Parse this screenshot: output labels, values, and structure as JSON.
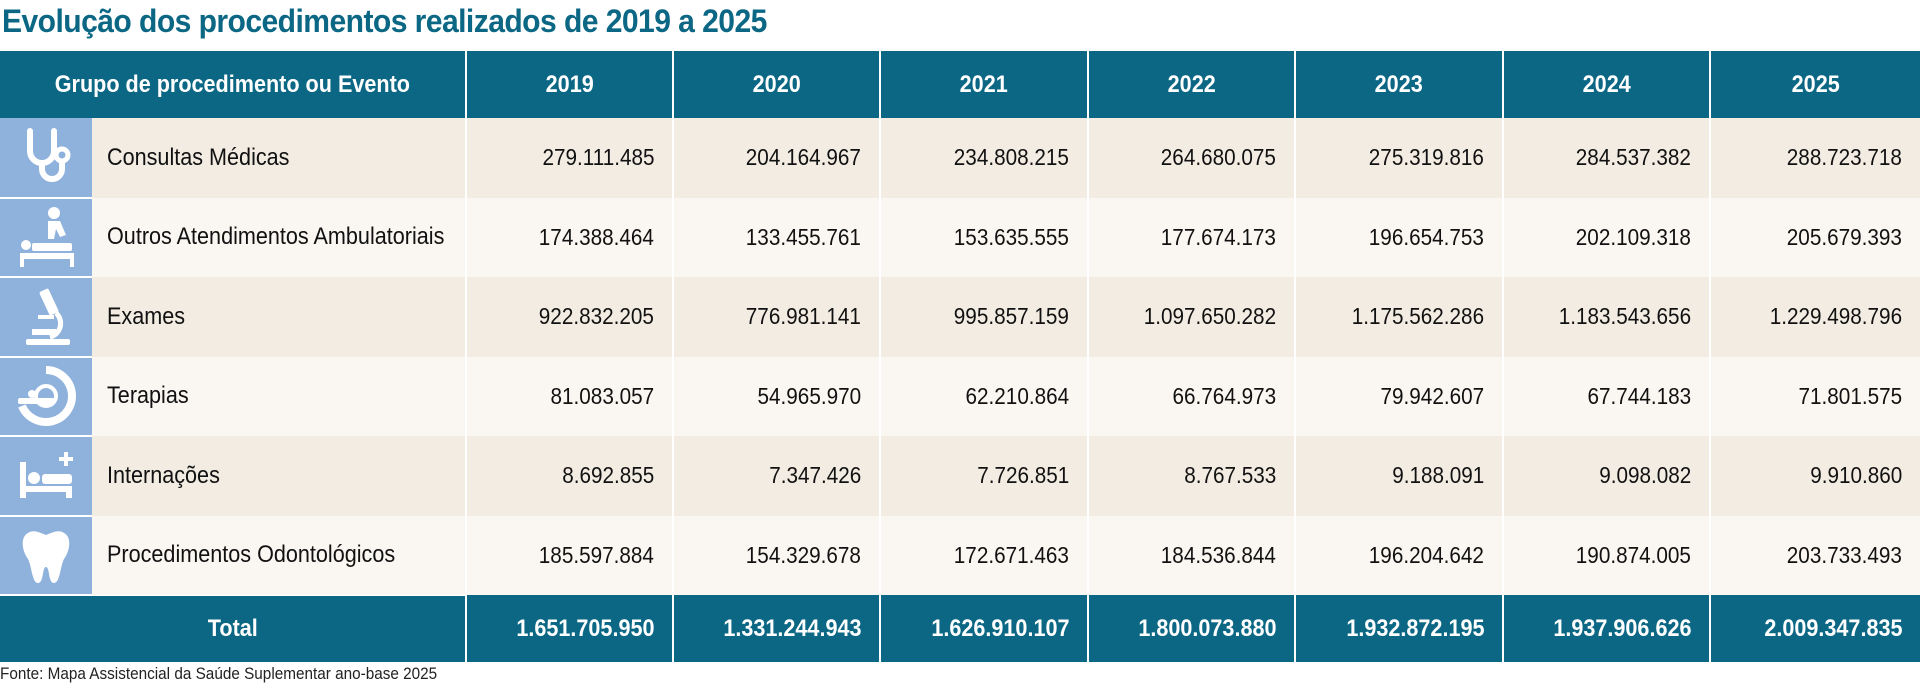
{
  "title": "Evolução dos procedimentos realizados de 2019 a 2025",
  "header": {
    "group_label": "Grupo de procedimento ou Evento",
    "years": [
      "2019",
      "2020",
      "2021",
      "2022",
      "2023",
      "2024",
      "2025"
    ]
  },
  "rows": [
    {
      "icon": "stethoscope-icon",
      "label": "Consultas Médicas",
      "values": [
        "279.111.485",
        "204.164.967",
        "234.808.215",
        "264.680.075",
        "275.319.816",
        "284.537.382",
        "288.723.718"
      ]
    },
    {
      "icon": "massage-therapy-icon",
      "label": "Outros Atendimentos Ambulatoriais",
      "values": [
        "174.388.464",
        "133.455.761",
        "153.635.555",
        "177.674.173",
        "196.654.753",
        "202.109.318",
        "205.679.393"
      ]
    },
    {
      "icon": "microscope-icon",
      "label": "Exames",
      "values": [
        "922.832.205",
        "776.981.141",
        "995.857.159",
        "1.097.650.282",
        "1.175.562.286",
        "1.183.543.656",
        "1.229.498.796"
      ]
    },
    {
      "icon": "scanner-icon",
      "label": "Terapias",
      "values": [
        "81.083.057",
        "54.965.970",
        "62.210.864",
        "66.764.973",
        "79.942.607",
        "67.744.183",
        "71.801.575"
      ]
    },
    {
      "icon": "hospital-bed-icon",
      "label": "Internações",
      "values": [
        "8.692.855",
        "7.347.426",
        "7.726.851",
        "8.767.533",
        "9.188.091",
        "9.098.082",
        "9.910.860"
      ]
    },
    {
      "icon": "tooth-icon",
      "label": "Procedimentos Odontológicos",
      "values": [
        "185.597.884",
        "154.329.678",
        "172.671.463",
        "184.536.844",
        "196.204.642",
        "190.874.005",
        "203.733.493"
      ]
    }
  ],
  "total": {
    "label": "Total",
    "values": [
      "1.651.705.950",
      "1.331.244.943",
      "1.626.910.107",
      "1.800.073.880",
      "1.932.872.195",
      "1.937.906.626",
      "2.009.347.835"
    ]
  },
  "source": "Fonte: Mapa Assistencial da Saúde Suplementar ano-base 2025",
  "colors": {
    "header_bg": "#0b6784",
    "icon_bg": "#8fb2dc",
    "row_odd_bg": "#f2ece2",
    "row_even_bg": "#faf7f2",
    "title": "#0b6784"
  }
}
